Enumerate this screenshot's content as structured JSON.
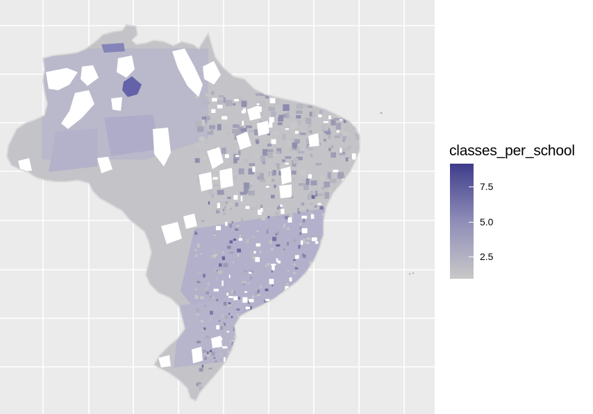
{
  "map": {
    "region": "Brazil municipalities",
    "fill_variable": "classes_per_school",
    "background_color": "#ebebeb",
    "grid_color": "#ffffff",
    "border_color": "#d3d3d3",
    "missing_fill": "#ffffff"
  },
  "legend": {
    "title": "classes_per_school",
    "type": "continuous",
    "low_color": "#c8c8c8",
    "high_color": "#3f3d8a",
    "ticks": [
      "7.5",
      "5.0",
      "2.5"
    ],
    "tick_values": [
      7.5,
      5.0,
      2.5
    ],
    "range": [
      1.0,
      9.0
    ]
  }
}
